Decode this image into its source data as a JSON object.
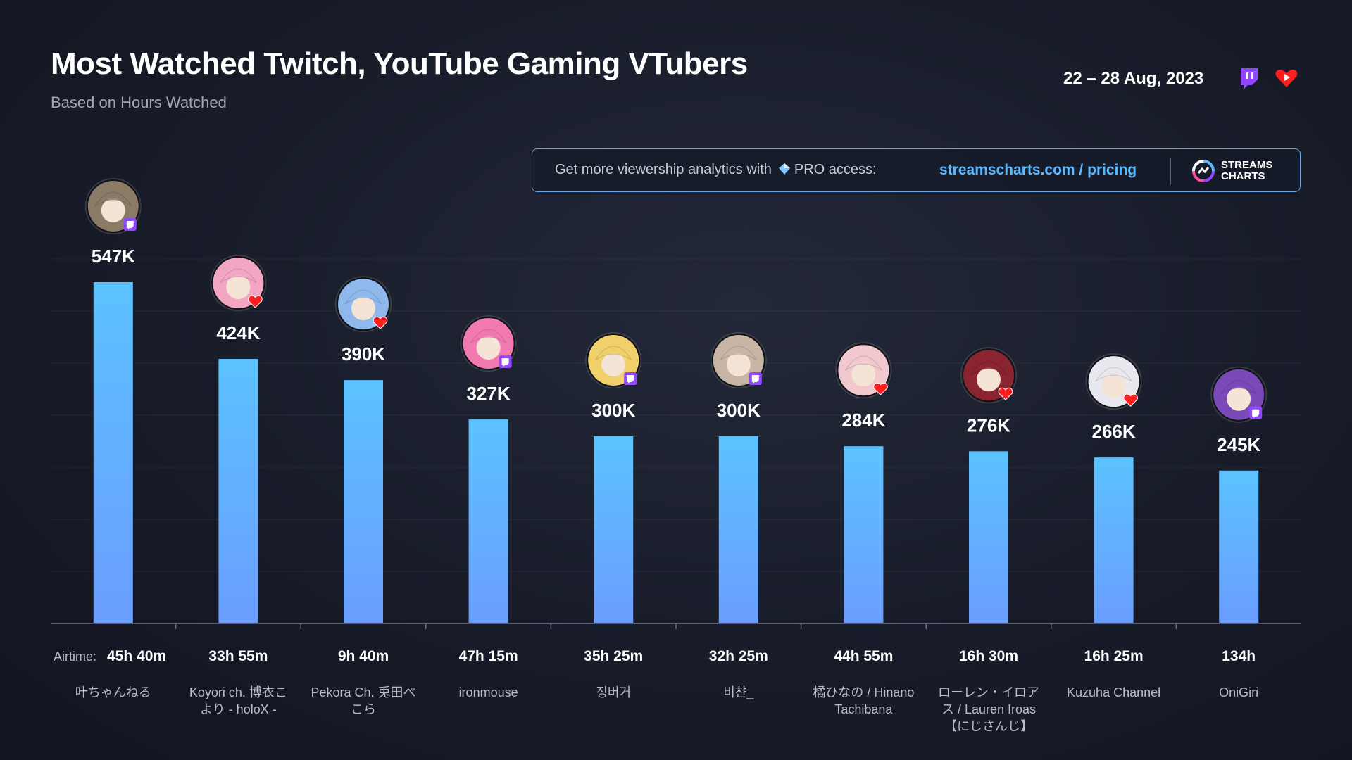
{
  "header": {
    "title": "Most Watched Twitch, YouTube Gaming VTubers",
    "subtitle": "Based on Hours Watched",
    "date_range": "22 – 28 Aug, 2023"
  },
  "promo": {
    "text_before": "Get more viewership analytics with",
    "text_pro": "PRO access:",
    "link": "streamscharts.com / pricing",
    "brand_line1": "STREAMS",
    "brand_line2": "CHARTS"
  },
  "colors": {
    "bar_top": "#5cc2ff",
    "bar_bottom": "#6a9dff",
    "twitch": "#9146ff",
    "youtube": "#ff1e1e"
  },
  "icons": {
    "twitch": "twitch-icon",
    "youtube": "youtube-gaming-icon",
    "diamond": "diamond-icon",
    "brand": "streams-charts-logo"
  },
  "airtime_label": "Airtime:",
  "chart_data": {
    "type": "bar",
    "title": "Most Watched Twitch, YouTube Gaming VTubers",
    "subtitle": "Based on Hours Watched",
    "unit": "hours watched",
    "ylim": [
      0,
      547000
    ],
    "grid": true,
    "categories": [
      "叶ちゃんねる",
      "Koyori ch. 博衣こより - holoX -",
      "Pekora Ch. 兎田ぺこら",
      "ironmouse",
      "징버거",
      "비챤_",
      "橘ひなの / Hinano Tachibana",
      "ローレン・イロアス / Lauren Iroas【にじさんじ】",
      "Kuzuha Channel",
      "OniGiri"
    ],
    "values": [
      547000,
      424000,
      390000,
      327000,
      300000,
      300000,
      284000,
      276000,
      266000,
      245000
    ],
    "value_labels": [
      "547K",
      "424K",
      "390K",
      "327K",
      "300K",
      "300K",
      "284K",
      "276K",
      "266K",
      "245K"
    ],
    "platforms": [
      "twitch",
      "youtube",
      "youtube",
      "twitch",
      "twitch",
      "twitch",
      "youtube",
      "youtube",
      "youtube",
      "twitch"
    ],
    "airtime": [
      "45h 40m",
      "33h 55m",
      "9h 40m",
      "47h 15m",
      "35h 25m",
      "32h 25m",
      "44h 55m",
      "16h 30m",
      "16h 25m",
      "134h"
    ],
    "name_lines": [
      [
        "叶ちゃんねる"
      ],
      [
        "Koyori ch. 博衣こ",
        "より - holoX -"
      ],
      [
        "Pekora Ch. 兎田ぺ",
        "こら"
      ],
      [
        "ironmouse"
      ],
      [
        "징버거"
      ],
      [
        "비챤_"
      ],
      [
        "橘ひなの / Hinano",
        "Tachibana"
      ],
      [
        "ローレン・イロア",
        "ス / Lauren Iroas",
        "【にじさんじ】"
      ],
      [
        "Kuzuha Channel"
      ],
      [
        "OniGiri"
      ]
    ],
    "avatar_colors": [
      "#8a7a66",
      "#f2a6c4",
      "#8fb8ec",
      "#f27ab0",
      "#f0d06a",
      "#c9b5a6",
      "#f2c8cf",
      "#8a2431",
      "#e8e8ee",
      "#7a4ab8"
    ]
  }
}
